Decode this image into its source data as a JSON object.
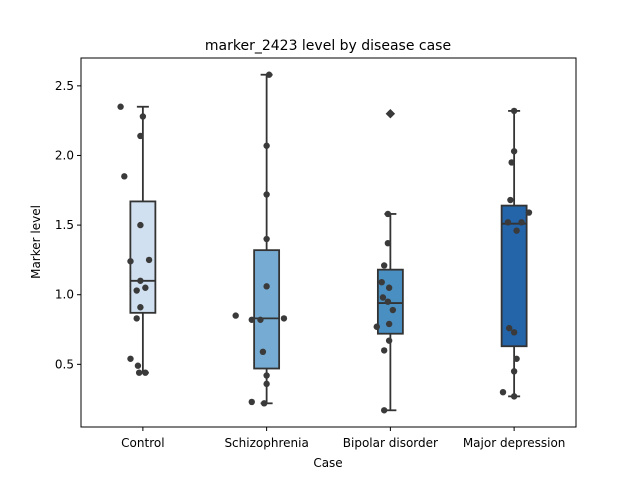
{
  "chart_data": {
    "type": "box",
    "title": "marker_2423 level by disease case",
    "xlabel": "Case",
    "ylabel": "Marker level",
    "ylim": [
      0.05,
      2.7
    ],
    "yticks": [
      0.5,
      1.0,
      1.5,
      2.0,
      2.5
    ],
    "ytick_labels": [
      "0.5",
      "1.0",
      "1.5",
      "2.0",
      "2.5"
    ],
    "grid": false,
    "categories": [
      "Control",
      "Schizophrenia",
      "Bipolar disorder",
      "Major depression"
    ],
    "box_colors": [
      "#d1e0f0",
      "#76acd3",
      "#4a8fc2",
      "#2464a8"
    ],
    "boxes": [
      {
        "q1": 0.87,
        "median": 1.1,
        "q3": 1.67,
        "whisker_low": 0.44,
        "whisker_high": 2.35,
        "fliers": []
      },
      {
        "q1": 0.47,
        "median": 0.83,
        "q3": 1.32,
        "whisker_low": 0.22,
        "whisker_high": 2.58,
        "fliers": []
      },
      {
        "q1": 0.72,
        "median": 0.94,
        "q3": 1.18,
        "whisker_low": 0.17,
        "whisker_high": 1.58,
        "fliers": [
          2.3
        ]
      },
      {
        "q1": 0.63,
        "median": 1.51,
        "q3": 1.64,
        "whisker_low": 0.27,
        "whisker_high": 2.32,
        "fliers": []
      }
    ],
    "points": [
      {
        "x": [
          -0.18,
          0.0,
          -0.02,
          -0.15,
          -0.02,
          0.05,
          -0.1,
          -0.02,
          0.02,
          -0.05,
          -0.02,
          -0.05,
          -0.1,
          -0.04,
          0.02,
          -0.03
        ],
        "y": [
          2.35,
          2.28,
          2.14,
          1.85,
          1.5,
          1.25,
          1.24,
          1.1,
          1.05,
          1.03,
          0.91,
          0.83,
          0.54,
          0.49,
          0.44,
          0.44
        ]
      },
      {
        "x": [
          0.02,
          0.0,
          0.0,
          0.0,
          -0.25,
          -0.12,
          0.0,
          -0.05,
          0.14,
          -0.03,
          0.0,
          0.0,
          -0.02,
          -0.12
        ],
        "y": [
          2.58,
          2.07,
          1.72,
          1.4,
          0.85,
          0.82,
          1.06,
          0.82,
          0.83,
          0.59,
          0.42,
          0.36,
          0.22,
          0.23
        ]
      },
      {
        "x": [
          0.0,
          -0.02,
          -0.02,
          -0.05,
          -0.07,
          -0.01,
          0.02,
          -0.06,
          -0.01,
          -0.11,
          -0.01,
          -0.05,
          -0.05,
          -0.02
        ],
        "y": [
          2.3,
          1.58,
          1.37,
          1.21,
          1.09,
          1.05,
          0.89,
          0.98,
          0.79,
          0.77,
          0.67,
          0.6,
          0.17,
          0.95
        ]
      },
      {
        "x": [
          0.0,
          0.0,
          -0.02,
          -0.03,
          0.12,
          0.06,
          -0.05,
          0.02,
          -0.04,
          0.0,
          0.02,
          0.0,
          -0.09,
          0.0
        ],
        "y": [
          2.32,
          2.03,
          1.95,
          1.68,
          1.59,
          1.52,
          1.52,
          1.46,
          0.76,
          0.73,
          0.54,
          0.45,
          0.3,
          0.27
        ]
      }
    ]
  }
}
